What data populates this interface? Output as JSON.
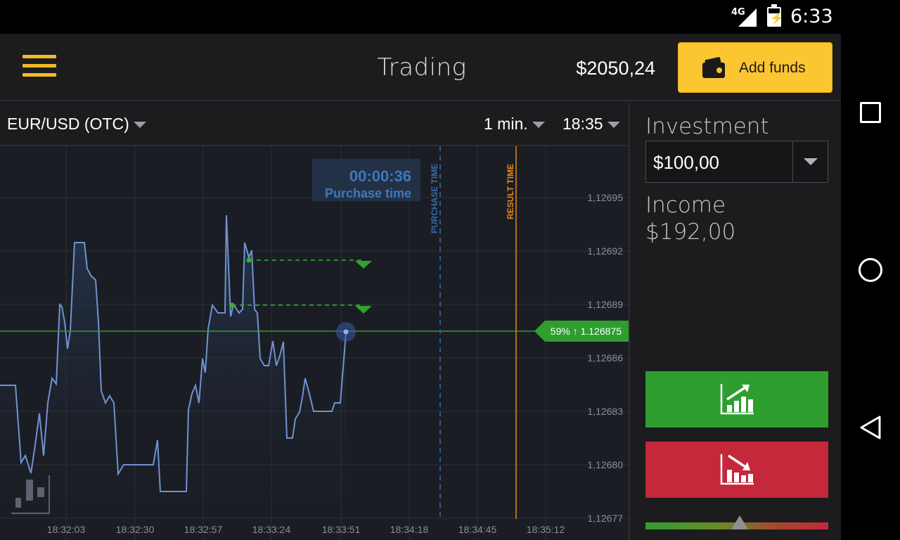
{
  "status_bar": {
    "network": "4G",
    "time": "6:33"
  },
  "header": {
    "title": "Trading",
    "balance": "$2050,24",
    "add_funds_label": "Add funds"
  },
  "toolbar": {
    "asset": "EUR/USD (OTC)",
    "timeframe": "1 min.",
    "expiry": "18:35"
  },
  "chart": {
    "timer": "00:00:36",
    "timer_label": "Purchase time",
    "purchase_time_label": "PURCHASE TIME",
    "result_time_label": "RESULT TIME",
    "current_price_tag": "59% ↑ 1.126875",
    "y_ticks": [
      "1,12695",
      "1,12692",
      "1,12689",
      "1,12686",
      "1,12683",
      "1,12680",
      "1,12677"
    ],
    "x_ticks": [
      "18:32:03",
      "18:32:30",
      "18:32:57",
      "18:33:24",
      "18:33:51",
      "18:34:18",
      "18:34:45",
      "18:35:12"
    ],
    "colors": {
      "line": "#6f93d0",
      "current": "#2e9e2e",
      "purchase": "#2d4f78",
      "result": "#e08a1e"
    }
  },
  "panel": {
    "investment_label": "Investment",
    "investment_value": "$100,00",
    "income_label": "Income",
    "income_value": "$192,00",
    "up_icon": "chart-up-icon",
    "down_icon": "chart-down-icon"
  }
}
